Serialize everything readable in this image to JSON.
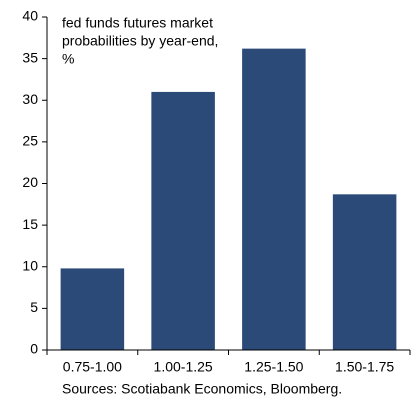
{
  "chart_data": {
    "type": "bar",
    "annotation": [
      "fed funds futures market",
      "probabilities by year-end,",
      "%"
    ],
    "categories": [
      "0.75-1.00",
      "1.00-1.25",
      "1.25-1.50",
      "1.50-1.75"
    ],
    "values": [
      9.8,
      31,
      36.2,
      18.7
    ],
    "color": "#2c4a78",
    "ylim": [
      0,
      40
    ],
    "yticks": [
      0,
      5,
      10,
      15,
      20,
      25,
      30,
      35,
      40
    ],
    "grid": false,
    "source": "Sources: Scotiabank Economics, Bloomberg."
  }
}
